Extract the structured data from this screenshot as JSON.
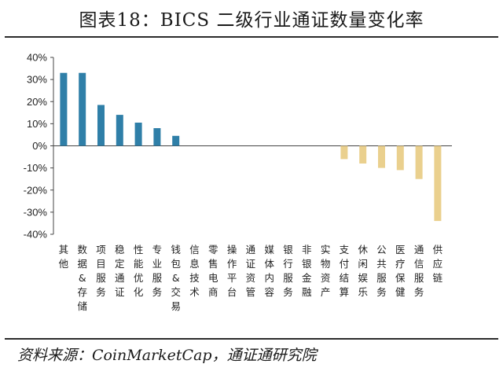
{
  "title": "图表18：BICS 二级行业通证数量变化率",
  "source": "资料来源：CoinMarketCap，通证通研究院",
  "colors": {
    "positive": "#2f7fa8",
    "negative": "#ead08e",
    "axis": "#444444"
  },
  "chart_data": {
    "type": "bar",
    "title": "图表18：BICS 二级行业通证数量变化率",
    "xlabel": "",
    "ylabel": "",
    "ylim": [
      -40,
      40
    ],
    "yticks": [
      "40%",
      "30%",
      "20%",
      "10%",
      "0%",
      "-10%",
      "-20%",
      "-30%",
      "-40%"
    ],
    "ytick_values": [
      40,
      30,
      20,
      10,
      0,
      -10,
      -20,
      -30,
      -40
    ],
    "grid": false,
    "categories": [
      "其他",
      "数据&存储",
      "项目服务",
      "稳定通证",
      "性能优化",
      "专业服务",
      "钱包&交易",
      "信息技术",
      "零售电商",
      "操作平台",
      "通证资管",
      "媒体内容",
      "银行服务",
      "非银金融",
      "实物资产",
      "支付结算",
      "休闲娱乐",
      "公共服务",
      "医疗保健",
      "通信服务",
      "供应链"
    ],
    "values": [
      33,
      33,
      18.5,
      14,
      10.5,
      8,
      4.5,
      0,
      0,
      0,
      0,
      0,
      0,
      0,
      0,
      -6,
      -8,
      -10,
      -11,
      -15,
      -34
    ]
  }
}
